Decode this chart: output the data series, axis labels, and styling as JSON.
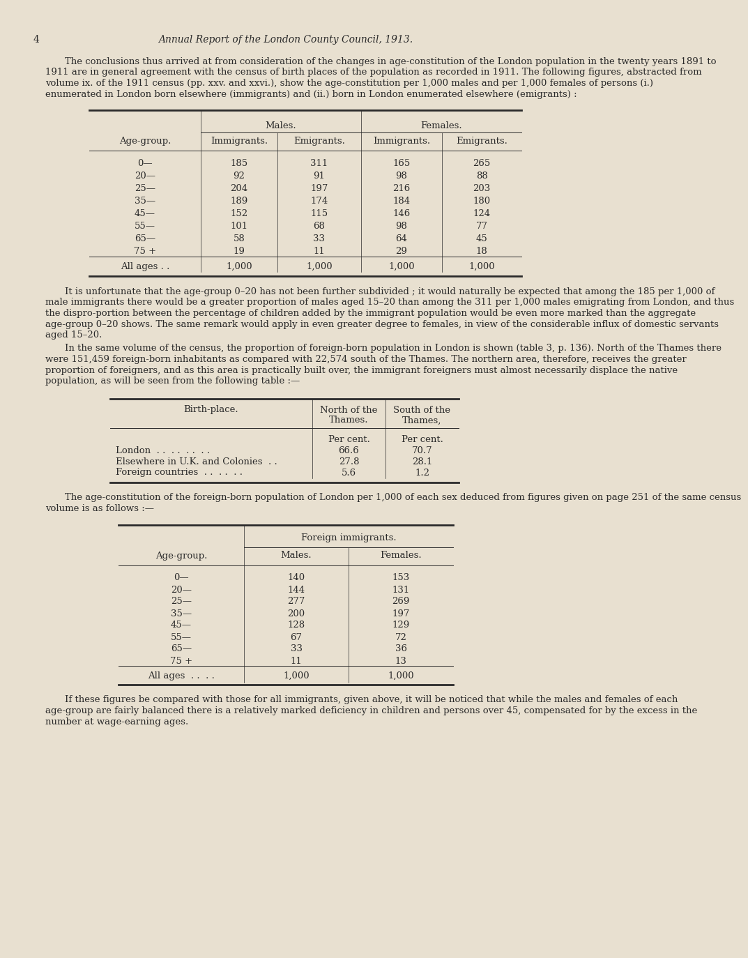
{
  "bg_color": "#e8e0d0",
  "text_color": "#2a2a2a",
  "page_number": "4",
  "header_title": "Annual Report of the London County Council, 1913.",
  "para1": "The conclusions thus arrived at from consideration of the changes in age-constitution of the London population in the twenty years 1891 to 1911 are in general agreement with the census of birth places of the population as recorded in 1911.  The following figures, abstracted from volume ix. of the 1911 census (pp. xxv. and xxvi.), show the age-constitution per 1,000 males and per 1,000 females of persons (i.) enumerated in London born elsewhere (immigrants) and (ii.) born in London enumerated elsewhere (emigrants) :",
  "table1_header1": "Males.",
  "table1_header2": "Females.",
  "table1_col1": "Age-group.",
  "table1_col2": "Immigrants.",
  "table1_col3": "Emigrants.",
  "table1_col4": "Immigrants.",
  "table1_col5": "Emigrants.",
  "table1_ages": [
    "0—",
    "20—",
    "25—",
    "35—",
    "45—",
    "55—",
    "65—",
    "75 +",
    "All ages . ."
  ],
  "table1_male_imm": [
    "185",
    "92",
    "204",
    "189",
    "152",
    "101",
    "58",
    "19",
    "1,000"
  ],
  "table1_male_emi": [
    "311",
    "91",
    "197",
    "174",
    "115",
    "68",
    "33",
    "11",
    "1,000"
  ],
  "table1_fem_imm": [
    "165",
    "98",
    "216",
    "184",
    "146",
    "98",
    "64",
    "29",
    "1,000"
  ],
  "table1_fem_emi": [
    "265",
    "88",
    "203",
    "180",
    "124",
    "77",
    "45",
    "18",
    "1,000"
  ],
  "para2": "It is unfortunate that the age-group 0–20 has not been further subdivided ; it would naturally be expected that among the 185 per 1,000 of male immigrants there would be a greater proportion of males aged 15–20 than among the 311 per 1,000 males emigrating from London, and thus the dispro-portion between the percentage of children added by the immigrant population would be even more marked than the aggregate age-group 0–20 shows.  The same remark would apply in even greater degree to females, in view of the considerable influx of domestic servants aged 15–20.",
  "para3": "In the same volume of the census, the proportion of foreign-born population in London is shown (table 3, p. 136).  North of the Thames there were 151,459 foreign-born inhabitants as compared with 22,574 south of the Thames.  The northern area, therefore, receives the greater proportion of foreigners, and as this area is practically built over, the immigrant foreigners must almost necessarily displace  the native population, as will be seen from the following table :—",
  "table2_col1": "Birth-place.",
  "table2_col2": "North of the\nThames.",
  "table2_col3": "South of the\nThames,",
  "table2_unit": "Per cent.",
  "table2_rows": [
    [
      "London  . .  . .  . .  . .",
      "66.6",
      "70.7"
    ],
    [
      "Elsewhere in U.K. and Colonies  . .",
      "27.8",
      "28.1"
    ],
    [
      "Foreign countries  . .  . .  . .",
      "5.6",
      "1.2"
    ]
  ],
  "para4": "The age-constitution of the foreign-born population of London per 1,000 of each sex deduced from figures given on page 251 of the same census volume is as follows :—",
  "table3_header": "Foreign immigrants.",
  "table3_col1": "Age-group.",
  "table3_col2": "Males.",
  "table3_col3": "Females.",
  "table3_ages": [
    "0—",
    "20—",
    "25—",
    "35—",
    "45—",
    "55—",
    "65—",
    "75 +",
    "All ages  . .  . ."
  ],
  "table3_males": [
    "140",
    "144",
    "277",
    "200",
    "128",
    "67",
    "33",
    "11",
    "1,000"
  ],
  "table3_females": [
    "153",
    "131",
    "269",
    "197",
    "129",
    "72",
    "36",
    "13",
    "1,000"
  ],
  "para5": "If these figures be compared with those for all immigrants, given above, it will be noticed that while the males and females of each age-group are fairly balanced there is a relatively marked deficiency in children and persons over 45, compensated for by the excess in the number at wage-earning ages."
}
